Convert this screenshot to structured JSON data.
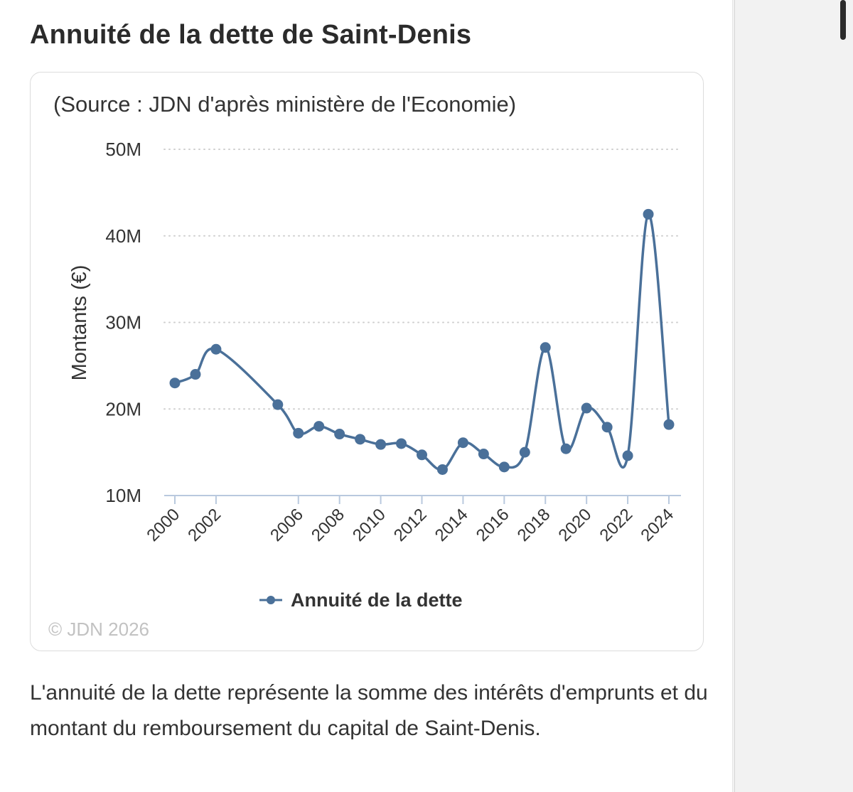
{
  "title": "Annuité de la dette de Saint-Denis",
  "description": "L'annuité de la dette représente la somme des intérêts d'emprunts et du montant du remboursement du capital de Saint-Denis.",
  "chart_data": {
    "type": "line",
    "source": "(Source : JDN d'après ministère de l'Economie)",
    "credit": "© JDN 2026",
    "ylabel": "Montants (€)",
    "xlabel": "",
    "ylim": [
      10000000,
      50000000
    ],
    "yticks": [
      10000000,
      20000000,
      30000000,
      40000000,
      50000000
    ],
    "ytick_labels": [
      "10M",
      "20M",
      "30M",
      "40M",
      "50M"
    ],
    "xticks": [
      2000,
      2002,
      2006,
      2008,
      2010,
      2012,
      2014,
      2016,
      2018,
      2020,
      2022,
      2024
    ],
    "xtick_labels": [
      "2000",
      "2002",
      "2006",
      "2008",
      "2010",
      "2012",
      "2014",
      "2016",
      "2018",
      "2020",
      "2022",
      "2024"
    ],
    "grid": "horizontal dotted",
    "legend_position": "bottom",
    "color": "#4a7099",
    "series": [
      {
        "name": "Annuité de la dette",
        "x": [
          2000,
          2001,
          2002,
          2005,
          2006,
          2007,
          2008,
          2009,
          2010,
          2011,
          2012,
          2013,
          2014,
          2015,
          2016,
          2017,
          2018,
          2019,
          2020,
          2021,
          2022,
          2023,
          2024
        ],
        "values": [
          23000000,
          24000000,
          26900000,
          20500000,
          17200000,
          18000000,
          17100000,
          16500000,
          15900000,
          16000000,
          14700000,
          13000000,
          16100000,
          14800000,
          13300000,
          15000000,
          27100000,
          15400000,
          20100000,
          17900000,
          14600000,
          42500000,
          18200000
        ]
      }
    ]
  }
}
